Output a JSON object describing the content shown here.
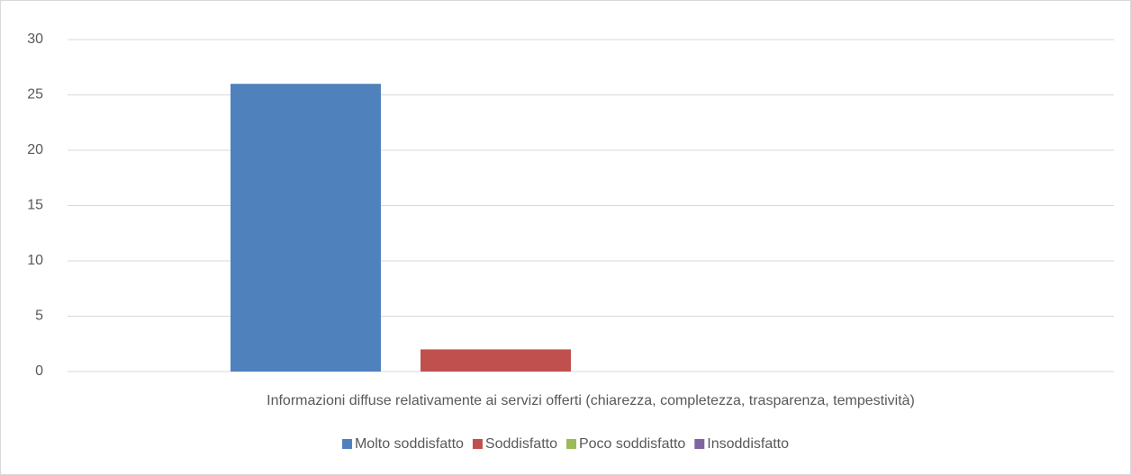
{
  "chart_data": {
    "type": "bar",
    "categories": [
      "Informazioni diffuse relativamente ai servizi offerti (chiarezza, completezza, trasparenza, tempestività)"
    ],
    "series": [
      {
        "name": "Molto soddisfatto",
        "color": "#4f81bd",
        "values": [
          26
        ]
      },
      {
        "name": "Soddisfatto",
        "color": "#c0504d",
        "values": [
          2
        ]
      },
      {
        "name": "Poco soddisfatto",
        "color": "#9bbb59",
        "values": [
          0
        ]
      },
      {
        "name": "Insoddisfatto",
        "color": "#8064a2",
        "values": [
          0
        ]
      }
    ],
    "ylim": [
      0,
      30
    ],
    "yticks": [
      0,
      5,
      10,
      15,
      20,
      25,
      30
    ],
    "grid": true,
    "legend": "bottom"
  }
}
